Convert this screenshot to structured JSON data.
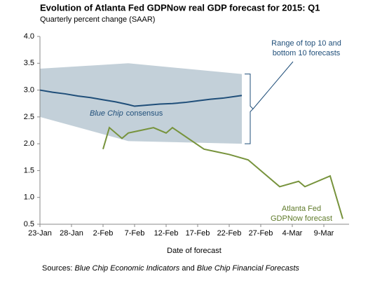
{
  "chart_data": {
    "type": "line",
    "title": "Evolution of Atlanta Fed GDPNow real GDP forecast for 2015: Q1",
    "subtitle": "Quarterly percent change (SAAR)",
    "x_label": "Date of forecast",
    "source": [
      "Sources:",
      "Blue Chip Economic Indicators",
      "and",
      "Blue Chip Financial Forecasts"
    ],
    "xlim": [
      0,
      49
    ],
    "xticks": [
      {
        "value": 0,
        "label": "23-Jan"
      },
      {
        "value": 5,
        "label": "28-Jan"
      },
      {
        "value": 10,
        "label": "2-Feb"
      },
      {
        "value": 15,
        "label": "7-Feb"
      },
      {
        "value": 20,
        "label": "12-Feb"
      },
      {
        "value": 25,
        "label": "17-Feb"
      },
      {
        "value": 30,
        "label": "22-Feb"
      },
      {
        "value": 35,
        "label": "27-Feb"
      },
      {
        "value": 40,
        "label": "4-Mar"
      },
      {
        "value": 45,
        "label": "9-Mar"
      }
    ],
    "ylim": [
      0.5,
      4.0
    ],
    "yticks": [
      {
        "value": 0.5,
        "label": "0.5"
      },
      {
        "value": 1.0,
        "label": "1.0"
      },
      {
        "value": 1.5,
        "label": "1.5"
      },
      {
        "value": 2.0,
        "label": "2.0"
      },
      {
        "value": 2.5,
        "label": "2.5"
      },
      {
        "value": 3.0,
        "label": "3.0"
      },
      {
        "value": 3.5,
        "label": "3.5"
      },
      {
        "value": 4.0,
        "label": "4.0"
      }
    ],
    "band": {
      "label": [
        "Range of top 10 and",
        "bottom 10 forecasts"
      ],
      "color": "#c3d0d9",
      "x": [
        0,
        14,
        32
      ],
      "upper": [
        3.4,
        3.5,
        3.3
      ],
      "lower": [
        2.5,
        2.05,
        2.0
      ]
    },
    "series": [
      {
        "label": [
          "Blue Chip",
          "consensus"
        ],
        "color": "#1f4e79",
        "x": [
          0,
          2,
          4,
          6,
          8,
          10,
          12,
          14,
          15,
          17,
          19,
          21,
          23,
          25,
          27,
          29,
          32
        ],
        "values": [
          3.0,
          2.96,
          2.93,
          2.89,
          2.86,
          2.82,
          2.78,
          2.73,
          2.7,
          2.72,
          2.74,
          2.75,
          2.77,
          2.8,
          2.83,
          2.85,
          2.9
        ]
      },
      {
        "label": [
          "Atlanta Fed",
          "GDPNow forecast"
        ],
        "color": "#77933c",
        "x": [
          10,
          11,
          13,
          14,
          16,
          18,
          20,
          21,
          26,
          28,
          30,
          33,
          38,
          41,
          42,
          46,
          48
        ],
        "values": [
          1.9,
          2.3,
          2.1,
          2.2,
          2.25,
          2.3,
          2.2,
          2.3,
          1.9,
          1.85,
          1.8,
          1.7,
          1.2,
          1.3,
          1.2,
          1.4,
          0.6
        ]
      }
    ]
  }
}
